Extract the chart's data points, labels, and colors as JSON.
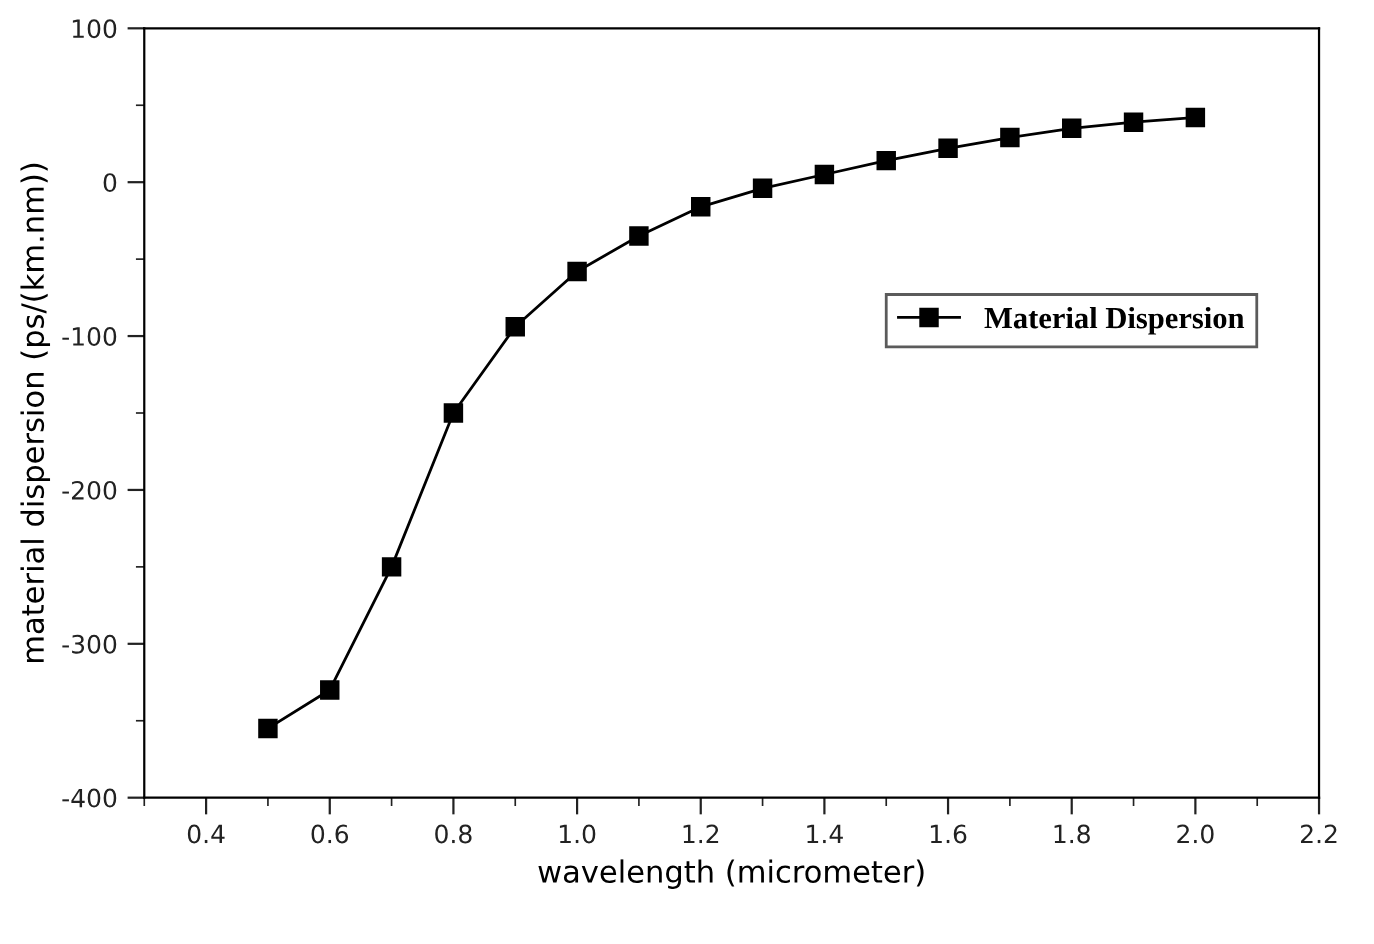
{
  "chart_data": {
    "type": "line",
    "xlabel": "wavelength (micrometer)",
    "ylabel": "material dispersion (ps/(km.nm))",
    "x": [
      0.5,
      0.6,
      0.7,
      0.8,
      0.9,
      1.0,
      1.1,
      1.2,
      1.3,
      1.4,
      1.5,
      1.6,
      1.7,
      1.8,
      1.9,
      2.0
    ],
    "series": [
      {
        "name": "Material Dispersion",
        "color": "#000000",
        "values": [
          -355,
          -330,
          -250,
          -150,
          -94,
          -58,
          -35,
          -16,
          -4,
          5,
          14,
          22,
          29,
          35,
          39,
          42
        ]
      }
    ],
    "xlim": [
      0.3,
      2.2
    ],
    "xticks": [
      0.4,
      0.6,
      0.8,
      {
        "value": 1,
        "label": "1.0"
      },
      1.2,
      1.4,
      1.6,
      1.8,
      {
        "value": 2,
        "label": "2.0"
      },
      2.2
    ],
    "ylim": [
      -400,
      100
    ],
    "yticks": [
      -400,
      -300,
      -200,
      -100,
      0,
      100
    ],
    "marker": "square",
    "line_style": "solid",
    "grid": false,
    "legend": "right"
  }
}
